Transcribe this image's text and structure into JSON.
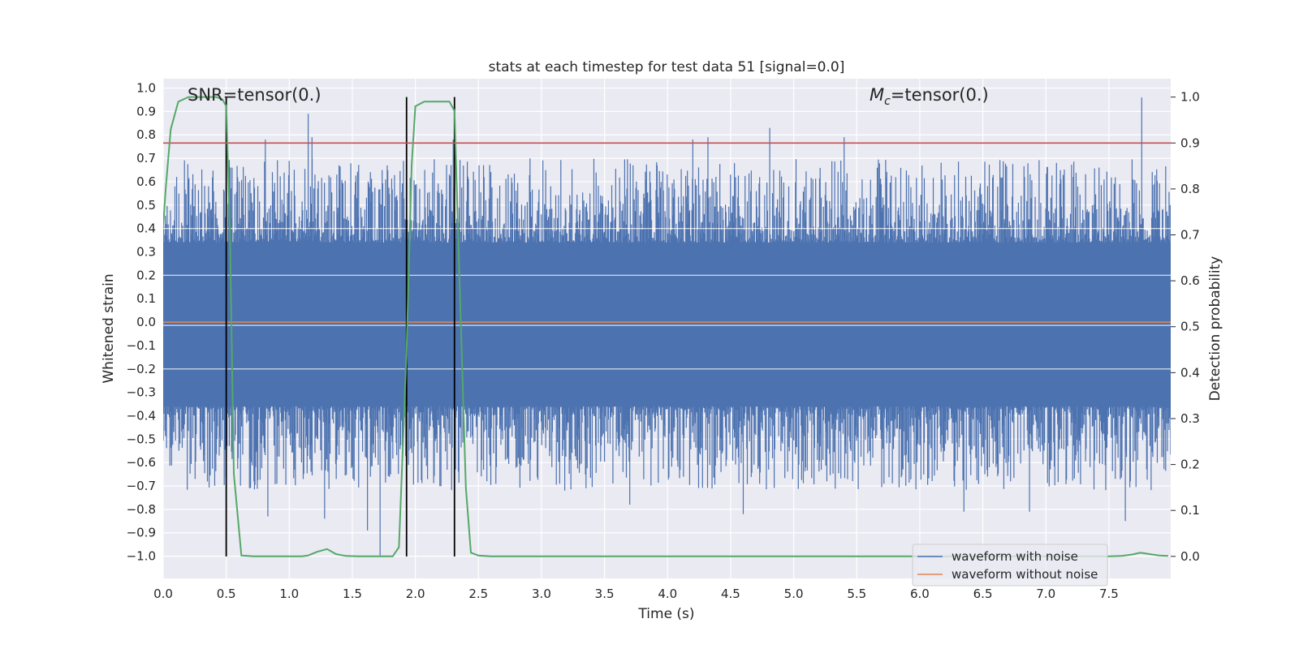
{
  "chart_data": {
    "type": "line",
    "title": "stats at each timestep for test data 51 [signal=0.0]",
    "xlabel": "Time (s)",
    "ylabel_left": "Whitened strain",
    "ylabel_right": "Detection probability",
    "xlim": [
      0.0,
      7.99
    ],
    "ylim_left": [
      -1.095,
      1.04
    ],
    "ylim_right": [
      -0.048,
      1.04
    ],
    "x_ticks": [
      "0.0",
      "0.5",
      "1.0",
      "1.5",
      "2.0",
      "2.5",
      "3.0",
      "3.5",
      "4.0",
      "4.5",
      "5.0",
      "5.5",
      "6.0",
      "6.5",
      "7.0",
      "7.5"
    ],
    "x_tick_values": [
      0.0,
      0.5,
      1.0,
      1.5,
      2.0,
      2.5,
      3.0,
      3.5,
      4.0,
      4.5,
      5.0,
      5.5,
      6.0,
      6.5,
      7.0,
      7.5
    ],
    "y_ticks_left": [
      "1.0",
      "0.9",
      "0.8",
      "0.7",
      "0.6",
      "0.5",
      "0.4",
      "0.3",
      "0.2",
      "0.1",
      "0.0",
      "−0.1",
      "−0.2",
      "−0.3",
      "−0.4",
      "−0.5",
      "−0.6",
      "−0.7",
      "−0.8",
      "−0.9",
      "−1.0"
    ],
    "y_tick_values_left": [
      1.0,
      0.9,
      0.8,
      0.7,
      0.6,
      0.5,
      0.4,
      0.3,
      0.2,
      0.1,
      0.0,
      -0.1,
      -0.2,
      -0.3,
      -0.4,
      -0.5,
      -0.6,
      -0.7,
      -0.8,
      -0.9,
      -1.0
    ],
    "y_ticks_right": [
      "1.0",
      "0.9",
      "0.8",
      "0.7",
      "0.6",
      "0.5",
      "0.4",
      "0.3",
      "0.2",
      "0.1",
      "0.0"
    ],
    "y_tick_values_right": [
      1.0,
      0.9,
      0.8,
      0.7,
      0.6,
      0.5,
      0.4,
      0.3,
      0.2,
      0.1,
      0.0
    ],
    "annotations": {
      "snr": "SNR=tensor(0.)",
      "mc_symbol": "M",
      "mc_subscript": "c",
      "mc_rest": "=tensor(0.)"
    },
    "legend": {
      "position": "lower-right",
      "entries": [
        {
          "label": "waveform with noise",
          "color": "#4c72b0"
        },
        {
          "label": "waveform without noise",
          "color": "#dd8452"
        }
      ]
    },
    "threshold_line": {
      "axis": "right",
      "value": 0.9,
      "color": "#c44e52"
    },
    "vertical_lines": {
      "x": [
        0.5,
        1.93,
        2.31
      ],
      "color": "#000000"
    },
    "noise_waveform": {
      "name": "waveform with noise",
      "color": "#4c72b0",
      "dense_band": [
        -0.36,
        0.34
      ],
      "peaks_positive": [
        {
          "x": 1.15,
          "y": 0.89
        },
        {
          "x": 1.18,
          "y": 0.79
        },
        {
          "x": 2.3,
          "y": 0.78
        },
        {
          "x": 4.2,
          "y": 0.78
        },
        {
          "x": 4.32,
          "y": 0.79
        },
        {
          "x": 4.81,
          "y": 0.83
        },
        {
          "x": 5.4,
          "y": 0.79
        },
        {
          "x": 7.76,
          "y": 0.96
        },
        {
          "x": 0.81,
          "y": 0.78
        }
      ],
      "peaks_negative": [
        {
          "x": 1.72,
          "y": -1.0
        },
        {
          "x": 1.62,
          "y": -0.89
        },
        {
          "x": 1.28,
          "y": -0.84
        },
        {
          "x": 0.83,
          "y": -0.83
        },
        {
          "x": 4.6,
          "y": -0.82
        },
        {
          "x": 6.35,
          "y": -0.81
        },
        {
          "x": 7.63,
          "y": -0.85
        },
        {
          "x": 3.7,
          "y": -0.78
        },
        {
          "x": 6.87,
          "y": -0.81
        }
      ]
    },
    "clean_waveform": {
      "name": "waveform without noise",
      "color": "#dd8452",
      "value": 0.0
    },
    "detection_probability": {
      "color": "#55a868",
      "x": [
        0.0,
        0.02,
        0.06,
        0.12,
        0.2,
        0.28,
        0.36,
        0.42,
        0.47,
        0.5,
        0.53,
        0.56,
        0.62,
        0.72,
        0.85,
        1.0,
        1.1,
        1.15,
        1.22,
        1.3,
        1.37,
        1.45,
        1.55,
        1.7,
        1.82,
        1.87,
        1.93,
        1.97,
        2.0,
        2.07,
        2.15,
        2.22,
        2.27,
        2.31,
        2.35,
        2.4,
        2.44,
        2.5,
        2.6,
        2.8,
        3.0,
        4.0,
        5.0,
        6.0,
        7.0,
        7.5,
        7.6,
        7.68,
        7.75,
        7.82,
        7.9,
        7.97
      ],
      "y": [
        0.72,
        0.8,
        0.93,
        0.99,
        1.0,
        1.0,
        1.0,
        1.0,
        0.995,
        0.98,
        0.7,
        0.18,
        0.002,
        0.0,
        0.0,
        0.0,
        0.0,
        0.002,
        0.01,
        0.016,
        0.005,
        0.001,
        0.0,
        0.0,
        0.0,
        0.02,
        0.45,
        0.85,
        0.98,
        0.99,
        0.99,
        0.99,
        0.99,
        0.97,
        0.6,
        0.15,
        0.008,
        0.002,
        0.0,
        0.0,
        0.0,
        0.0,
        0.0,
        0.0,
        0.0,
        0.0,
        0.001,
        0.004,
        0.008,
        0.005,
        0.002,
        0.001
      ]
    }
  }
}
